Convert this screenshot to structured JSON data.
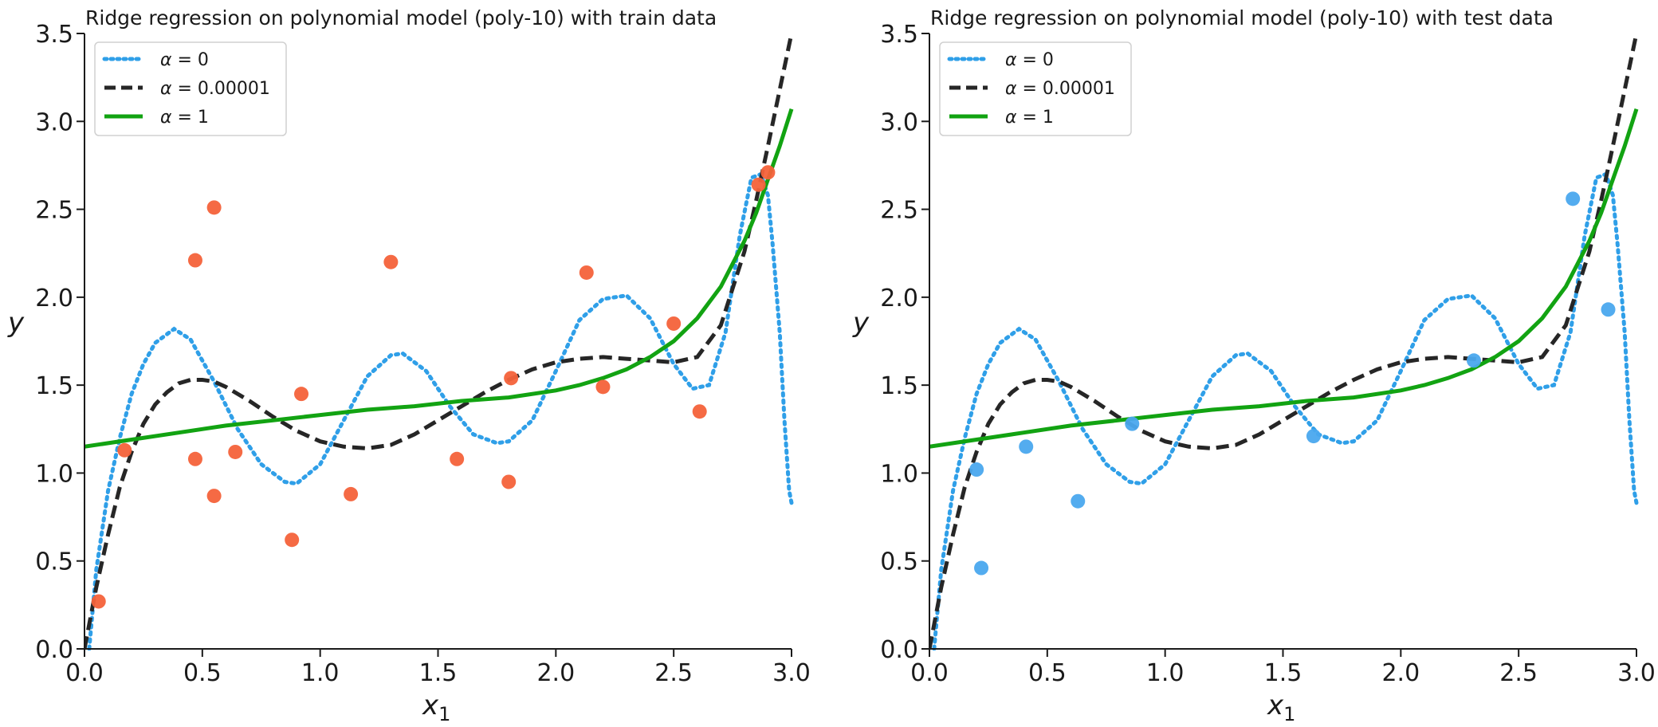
{
  "figure": {
    "panels": [
      {
        "title": "Ridge regression on polynomial model (poly-10) with train data",
        "xlabel_main": "x",
        "xlabel_sub": "1",
        "ylabel": "y"
      },
      {
        "title": "Ridge regression on polynomial model (poly-10) with test data",
        "xlabel_main": "x",
        "xlabel_sub": "1",
        "ylabel": "y"
      }
    ],
    "legend": [
      {
        "symbol": "α",
        "text": " = 0"
      },
      {
        "symbol": "α",
        "text": " = 0.00001"
      },
      {
        "symbol": "α",
        "text": " = 1"
      }
    ]
  },
  "colors": {
    "alpha0": "#2f9fe8",
    "alpha_small": "#262626",
    "alpha1": "#12a312",
    "train_points": "#f4623a",
    "test_points": "#4aa8ee",
    "axis": "#1a1a1a"
  },
  "chart_data": [
    {
      "type": "line+scatter",
      "title": "Ridge regression on polynomial model (poly-10) with train data",
      "xlabel": "x_1",
      "ylabel": "y",
      "xlim": [
        0.0,
        3.0
      ],
      "ylim": [
        0.0,
        3.5
      ],
      "xticks": [
        "0.0",
        "0.5",
        "1.0",
        "1.5",
        "2.0",
        "2.5",
        "3.0"
      ],
      "yticks": [
        "0.0",
        "0.5",
        "1.0",
        "1.5",
        "2.0",
        "2.5",
        "3.0",
        "3.5"
      ],
      "legend_position": "top-left",
      "series": [
        {
          "name": "α = 0",
          "style": "dotted",
          "x": [
            0.02,
            0.05,
            0.1,
            0.15,
            0.2,
            0.25,
            0.3,
            0.38,
            0.45,
            0.55,
            0.65,
            0.75,
            0.85,
            0.9,
            1.0,
            1.1,
            1.2,
            1.3,
            1.35,
            1.45,
            1.55,
            1.65,
            1.75,
            1.8,
            1.9,
            2.0,
            2.1,
            2.2,
            2.3,
            2.4,
            2.5,
            2.58,
            2.65,
            2.72,
            2.78,
            2.83,
            2.87,
            2.9,
            2.92,
            2.95,
            2.97,
            2.99,
            3.0
          ],
          "y": [
            0.0,
            0.45,
            0.9,
            1.2,
            1.45,
            1.62,
            1.74,
            1.82,
            1.76,
            1.52,
            1.25,
            1.05,
            0.95,
            0.94,
            1.05,
            1.3,
            1.55,
            1.67,
            1.68,
            1.58,
            1.38,
            1.22,
            1.17,
            1.18,
            1.3,
            1.58,
            1.87,
            1.99,
            2.01,
            1.88,
            1.62,
            1.48,
            1.5,
            1.8,
            2.35,
            2.68,
            2.7,
            2.58,
            2.3,
            1.8,
            1.3,
            0.9,
            0.83
          ]
        },
        {
          "name": "α = 0.00001",
          "style": "dashed",
          "x": [
            0.0,
            0.05,
            0.1,
            0.15,
            0.2,
            0.25,
            0.3,
            0.35,
            0.4,
            0.45,
            0.5,
            0.55,
            0.6,
            0.7,
            0.8,
            0.9,
            1.0,
            1.1,
            1.2,
            1.3,
            1.4,
            1.5,
            1.6,
            1.7,
            1.8,
            1.9,
            2.0,
            2.1,
            2.2,
            2.3,
            2.4,
            2.5,
            2.6,
            2.7,
            2.8,
            2.85,
            2.9,
            2.95,
            3.0
          ],
          "y": [
            0.0,
            0.35,
            0.65,
            0.92,
            1.12,
            1.28,
            1.39,
            1.46,
            1.51,
            1.53,
            1.53,
            1.52,
            1.49,
            1.41,
            1.32,
            1.24,
            1.18,
            1.15,
            1.14,
            1.16,
            1.22,
            1.3,
            1.38,
            1.46,
            1.53,
            1.59,
            1.63,
            1.65,
            1.66,
            1.65,
            1.64,
            1.63,
            1.66,
            1.84,
            2.26,
            2.55,
            2.86,
            3.18,
            3.5
          ]
        },
        {
          "name": "α = 1",
          "style": "solid",
          "x": [
            0.0,
            0.2,
            0.4,
            0.6,
            0.8,
            1.0,
            1.2,
            1.4,
            1.6,
            1.8,
            2.0,
            2.1,
            2.2,
            2.3,
            2.4,
            2.5,
            2.6,
            2.7,
            2.8,
            2.85,
            2.9,
            2.95,
            3.0
          ],
          "y": [
            1.15,
            1.19,
            1.23,
            1.27,
            1.3,
            1.33,
            1.36,
            1.38,
            1.41,
            1.43,
            1.47,
            1.5,
            1.54,
            1.59,
            1.66,
            1.75,
            1.88,
            2.06,
            2.32,
            2.48,
            2.67,
            2.86,
            3.07
          ]
        },
        {
          "name": "train data",
          "style": "points",
          "x": [
            0.06,
            0.17,
            0.47,
            0.47,
            0.55,
            0.55,
            0.64,
            0.88,
            0.92,
            1.13,
            1.3,
            1.58,
            1.8,
            1.81,
            2.13,
            2.2,
            2.5,
            2.61,
            2.86,
            2.9
          ],
          "y": [
            0.27,
            1.13,
            2.21,
            1.08,
            2.51,
            0.87,
            1.12,
            0.62,
            1.45,
            0.88,
            2.2,
            1.08,
            0.95,
            1.54,
            2.14,
            1.49,
            1.85,
            1.35,
            2.64,
            2.71
          ]
        }
      ]
    },
    {
      "type": "line+scatter",
      "title": "Ridge regression on polynomial model (poly-10) with test data",
      "xlabel": "x_1",
      "ylabel": "y",
      "xlim": [
        0.0,
        3.0
      ],
      "ylim": [
        0.0,
        3.5
      ],
      "xticks": [
        "0.0",
        "0.5",
        "1.0",
        "1.5",
        "2.0",
        "2.5",
        "3.0"
      ],
      "yticks": [
        "0.0",
        "0.5",
        "1.0",
        "1.5",
        "2.0",
        "2.5",
        "3.0",
        "3.5"
      ],
      "legend_position": "top-left",
      "series": [
        {
          "name": "α = 0",
          "style": "dotted",
          "x": [
            0.02,
            0.05,
            0.1,
            0.15,
            0.2,
            0.25,
            0.3,
            0.38,
            0.45,
            0.55,
            0.65,
            0.75,
            0.85,
            0.9,
            1.0,
            1.1,
            1.2,
            1.3,
            1.35,
            1.45,
            1.55,
            1.65,
            1.75,
            1.8,
            1.9,
            2.0,
            2.1,
            2.2,
            2.3,
            2.4,
            2.5,
            2.58,
            2.65,
            2.72,
            2.78,
            2.83,
            2.87,
            2.9,
            2.92,
            2.95,
            2.97,
            2.99,
            3.0
          ],
          "y": [
            0.0,
            0.45,
            0.9,
            1.2,
            1.45,
            1.62,
            1.74,
            1.82,
            1.76,
            1.52,
            1.25,
            1.05,
            0.95,
            0.94,
            1.05,
            1.3,
            1.55,
            1.67,
            1.68,
            1.58,
            1.38,
            1.22,
            1.17,
            1.18,
            1.3,
            1.58,
            1.87,
            1.99,
            2.01,
            1.88,
            1.62,
            1.48,
            1.5,
            1.8,
            2.35,
            2.68,
            2.7,
            2.58,
            2.3,
            1.8,
            1.3,
            0.9,
            0.83
          ]
        },
        {
          "name": "α = 0.00001",
          "style": "dashed",
          "x": [
            0.0,
            0.05,
            0.1,
            0.15,
            0.2,
            0.25,
            0.3,
            0.35,
            0.4,
            0.45,
            0.5,
            0.55,
            0.6,
            0.7,
            0.8,
            0.9,
            1.0,
            1.1,
            1.2,
            1.3,
            1.4,
            1.5,
            1.6,
            1.7,
            1.8,
            1.9,
            2.0,
            2.1,
            2.2,
            2.3,
            2.4,
            2.5,
            2.6,
            2.7,
            2.8,
            2.85,
            2.9,
            2.95,
            3.0
          ],
          "y": [
            0.0,
            0.35,
            0.65,
            0.92,
            1.12,
            1.28,
            1.39,
            1.46,
            1.51,
            1.53,
            1.53,
            1.52,
            1.49,
            1.41,
            1.32,
            1.24,
            1.18,
            1.15,
            1.14,
            1.16,
            1.22,
            1.3,
            1.38,
            1.46,
            1.53,
            1.59,
            1.63,
            1.65,
            1.66,
            1.65,
            1.64,
            1.63,
            1.66,
            1.84,
            2.26,
            2.55,
            2.86,
            3.18,
            3.5
          ]
        },
        {
          "name": "α = 1",
          "style": "solid",
          "x": [
            0.0,
            0.2,
            0.4,
            0.6,
            0.8,
            1.0,
            1.2,
            1.4,
            1.6,
            1.8,
            2.0,
            2.1,
            2.2,
            2.3,
            2.4,
            2.5,
            2.6,
            2.7,
            2.8,
            2.85,
            2.9,
            2.95,
            3.0
          ],
          "y": [
            1.15,
            1.19,
            1.23,
            1.27,
            1.3,
            1.33,
            1.36,
            1.38,
            1.41,
            1.43,
            1.47,
            1.5,
            1.54,
            1.59,
            1.66,
            1.75,
            1.88,
            2.06,
            2.32,
            2.48,
            2.67,
            2.86,
            3.07
          ]
        },
        {
          "name": "test data",
          "style": "points",
          "x": [
            0.2,
            0.22,
            0.41,
            0.63,
            0.86,
            1.63,
            2.31,
            2.73,
            2.88
          ],
          "y": [
            1.02,
            0.46,
            1.15,
            0.84,
            1.28,
            1.21,
            1.64,
            2.56,
            1.93
          ]
        }
      ]
    }
  ]
}
